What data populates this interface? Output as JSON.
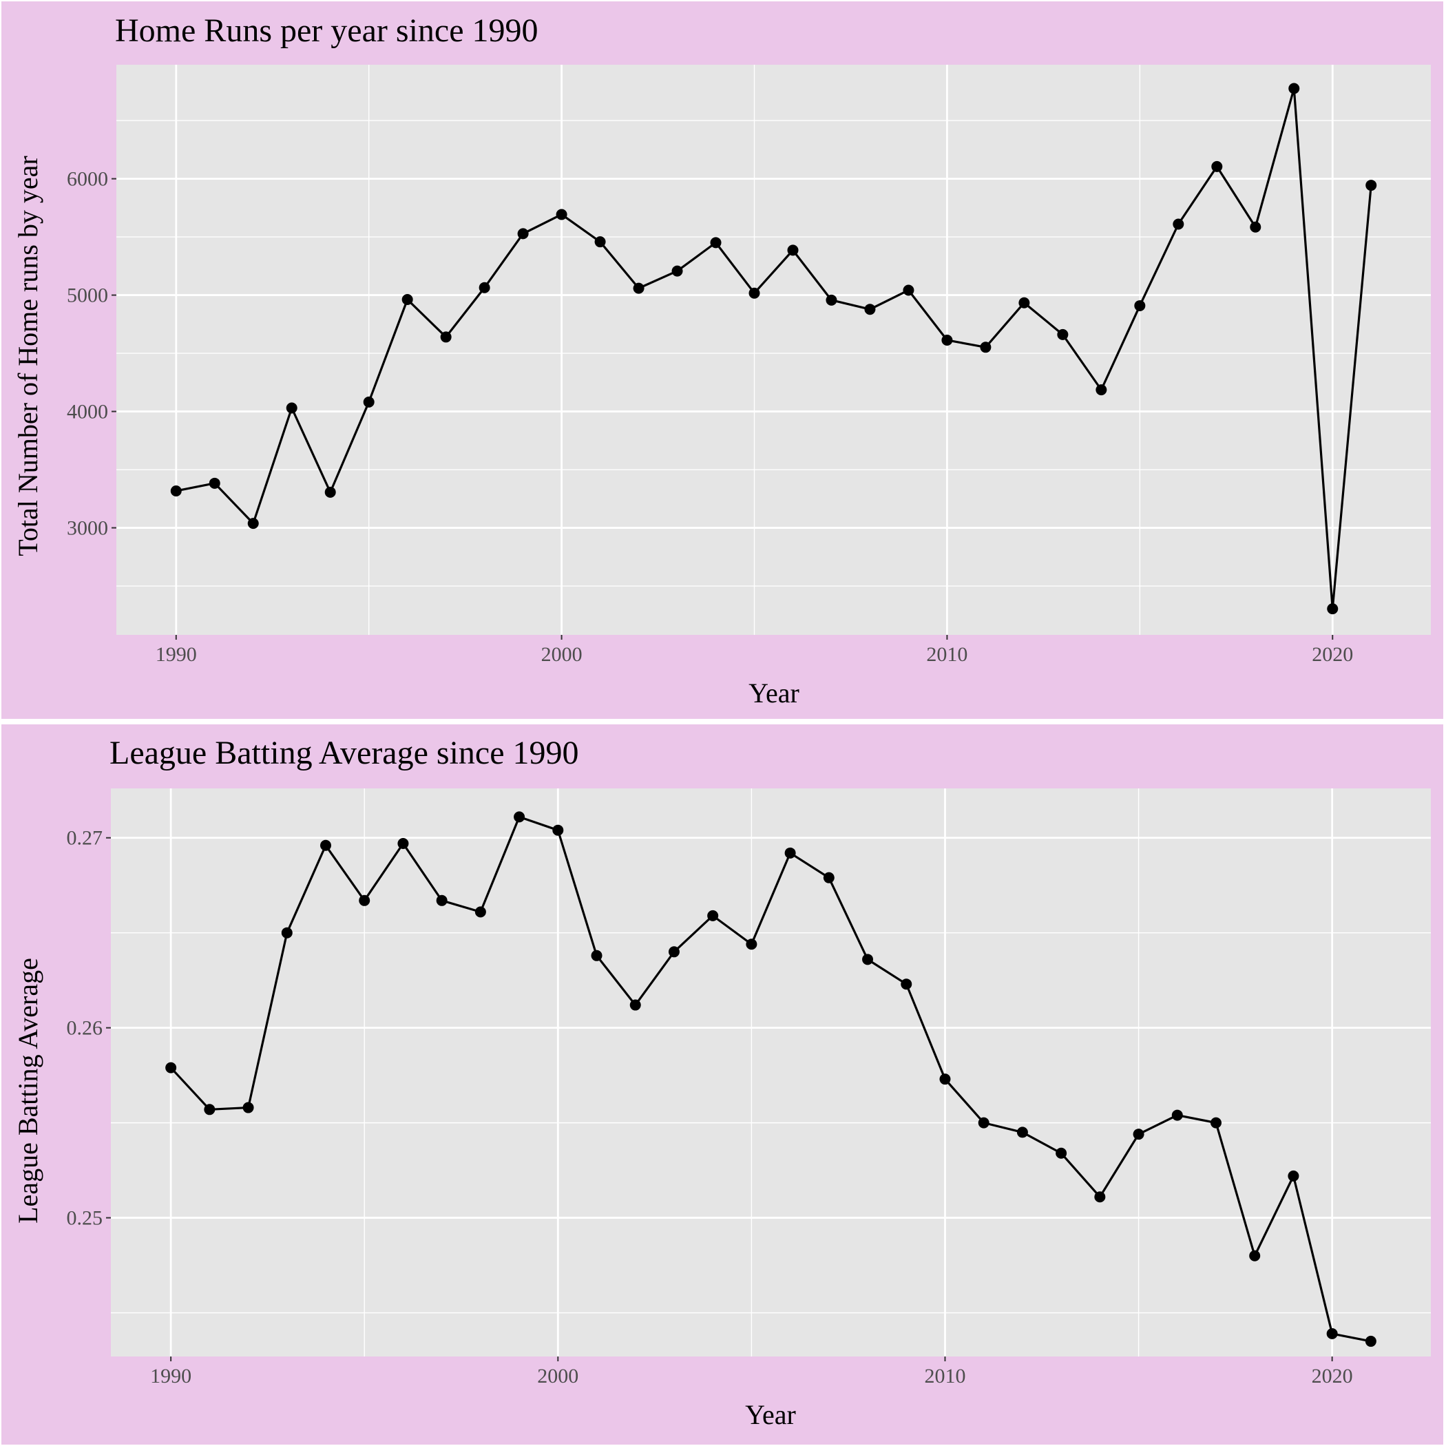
{
  "chart_data": [
    {
      "type": "line",
      "title": "Home Runs per year since 1990",
      "xlabel": "Year",
      "ylabel": "Total Number of Home runs by year",
      "xlim": [
        1988.45,
        2022.55
      ],
      "ylim": [
        2080,
        6980
      ],
      "x_ticks": [
        1990,
        2000,
        2010,
        2020
      ],
      "x_tick_labels": [
        "1990",
        "2000",
        "2010",
        "2020"
      ],
      "y_ticks": [
        3000,
        4000,
        5000,
        6000
      ],
      "y_tick_labels": [
        "3000",
        "4000",
        "5000",
        "6000"
      ],
      "grid": true,
      "line_color": "#000000",
      "panel_color": "#e5e5e5",
      "background_color": "#ebc6e9",
      "x": [
        1990,
        1991,
        1992,
        1993,
        1994,
        1995,
        1996,
        1997,
        1998,
        1999,
        2000,
        2001,
        2002,
        2003,
        2004,
        2005,
        2006,
        2007,
        2008,
        2009,
        2010,
        2011,
        2012,
        2013,
        2014,
        2015,
        2016,
        2017,
        2018,
        2019,
        2020,
        2021
      ],
      "values": [
        3317,
        3383,
        3038,
        4030,
        3306,
        4081,
        4962,
        4640,
        5064,
        5528,
        5693,
        5458,
        5059,
        5207,
        5451,
        5017,
        5386,
        4957,
        4878,
        5042,
        4613,
        4552,
        4934,
        4661,
        4186,
        4909,
        5610,
        6105,
        5585,
        6776,
        2304,
        5944
      ]
    },
    {
      "type": "line",
      "title": "League Batting Average since 1990",
      "xlabel": "Year",
      "ylabel": "League Batting Average",
      "xlim": [
        1988.45,
        2022.55
      ],
      "ylim": [
        0.2427,
        0.2726
      ],
      "x_ticks": [
        1990,
        2000,
        2010,
        2020
      ],
      "x_tick_labels": [
        "1990",
        "2000",
        "2010",
        "2020"
      ],
      "y_ticks": [
        0.25,
        0.26,
        0.27
      ],
      "y_tick_labels": [
        "0.25",
        "0.26",
        "0.27"
      ],
      "grid": true,
      "line_color": "#000000",
      "panel_color": "#e5e5e5",
      "background_color": "#ebc6e9",
      "x": [
        1990,
        1991,
        1992,
        1993,
        1994,
        1995,
        1996,
        1997,
        1998,
        1999,
        2000,
        2001,
        2002,
        2003,
        2004,
        2005,
        2006,
        2007,
        2008,
        2009,
        2010,
        2011,
        2012,
        2013,
        2014,
        2015,
        2016,
        2017,
        2018,
        2019,
        2020,
        2021
      ],
      "values": [
        0.2579,
        0.2557,
        0.2558,
        0.265,
        0.2696,
        0.2667,
        0.2697,
        0.2667,
        0.2661,
        0.2711,
        0.2704,
        0.2638,
        0.2612,
        0.264,
        0.2659,
        0.2644,
        0.2692,
        0.2679,
        0.2636,
        0.2623,
        0.2573,
        0.255,
        0.2545,
        0.2534,
        0.2511,
        0.2544,
        0.2554,
        0.255,
        0.248,
        0.2522,
        0.2439,
        0.2435
      ]
    }
  ]
}
